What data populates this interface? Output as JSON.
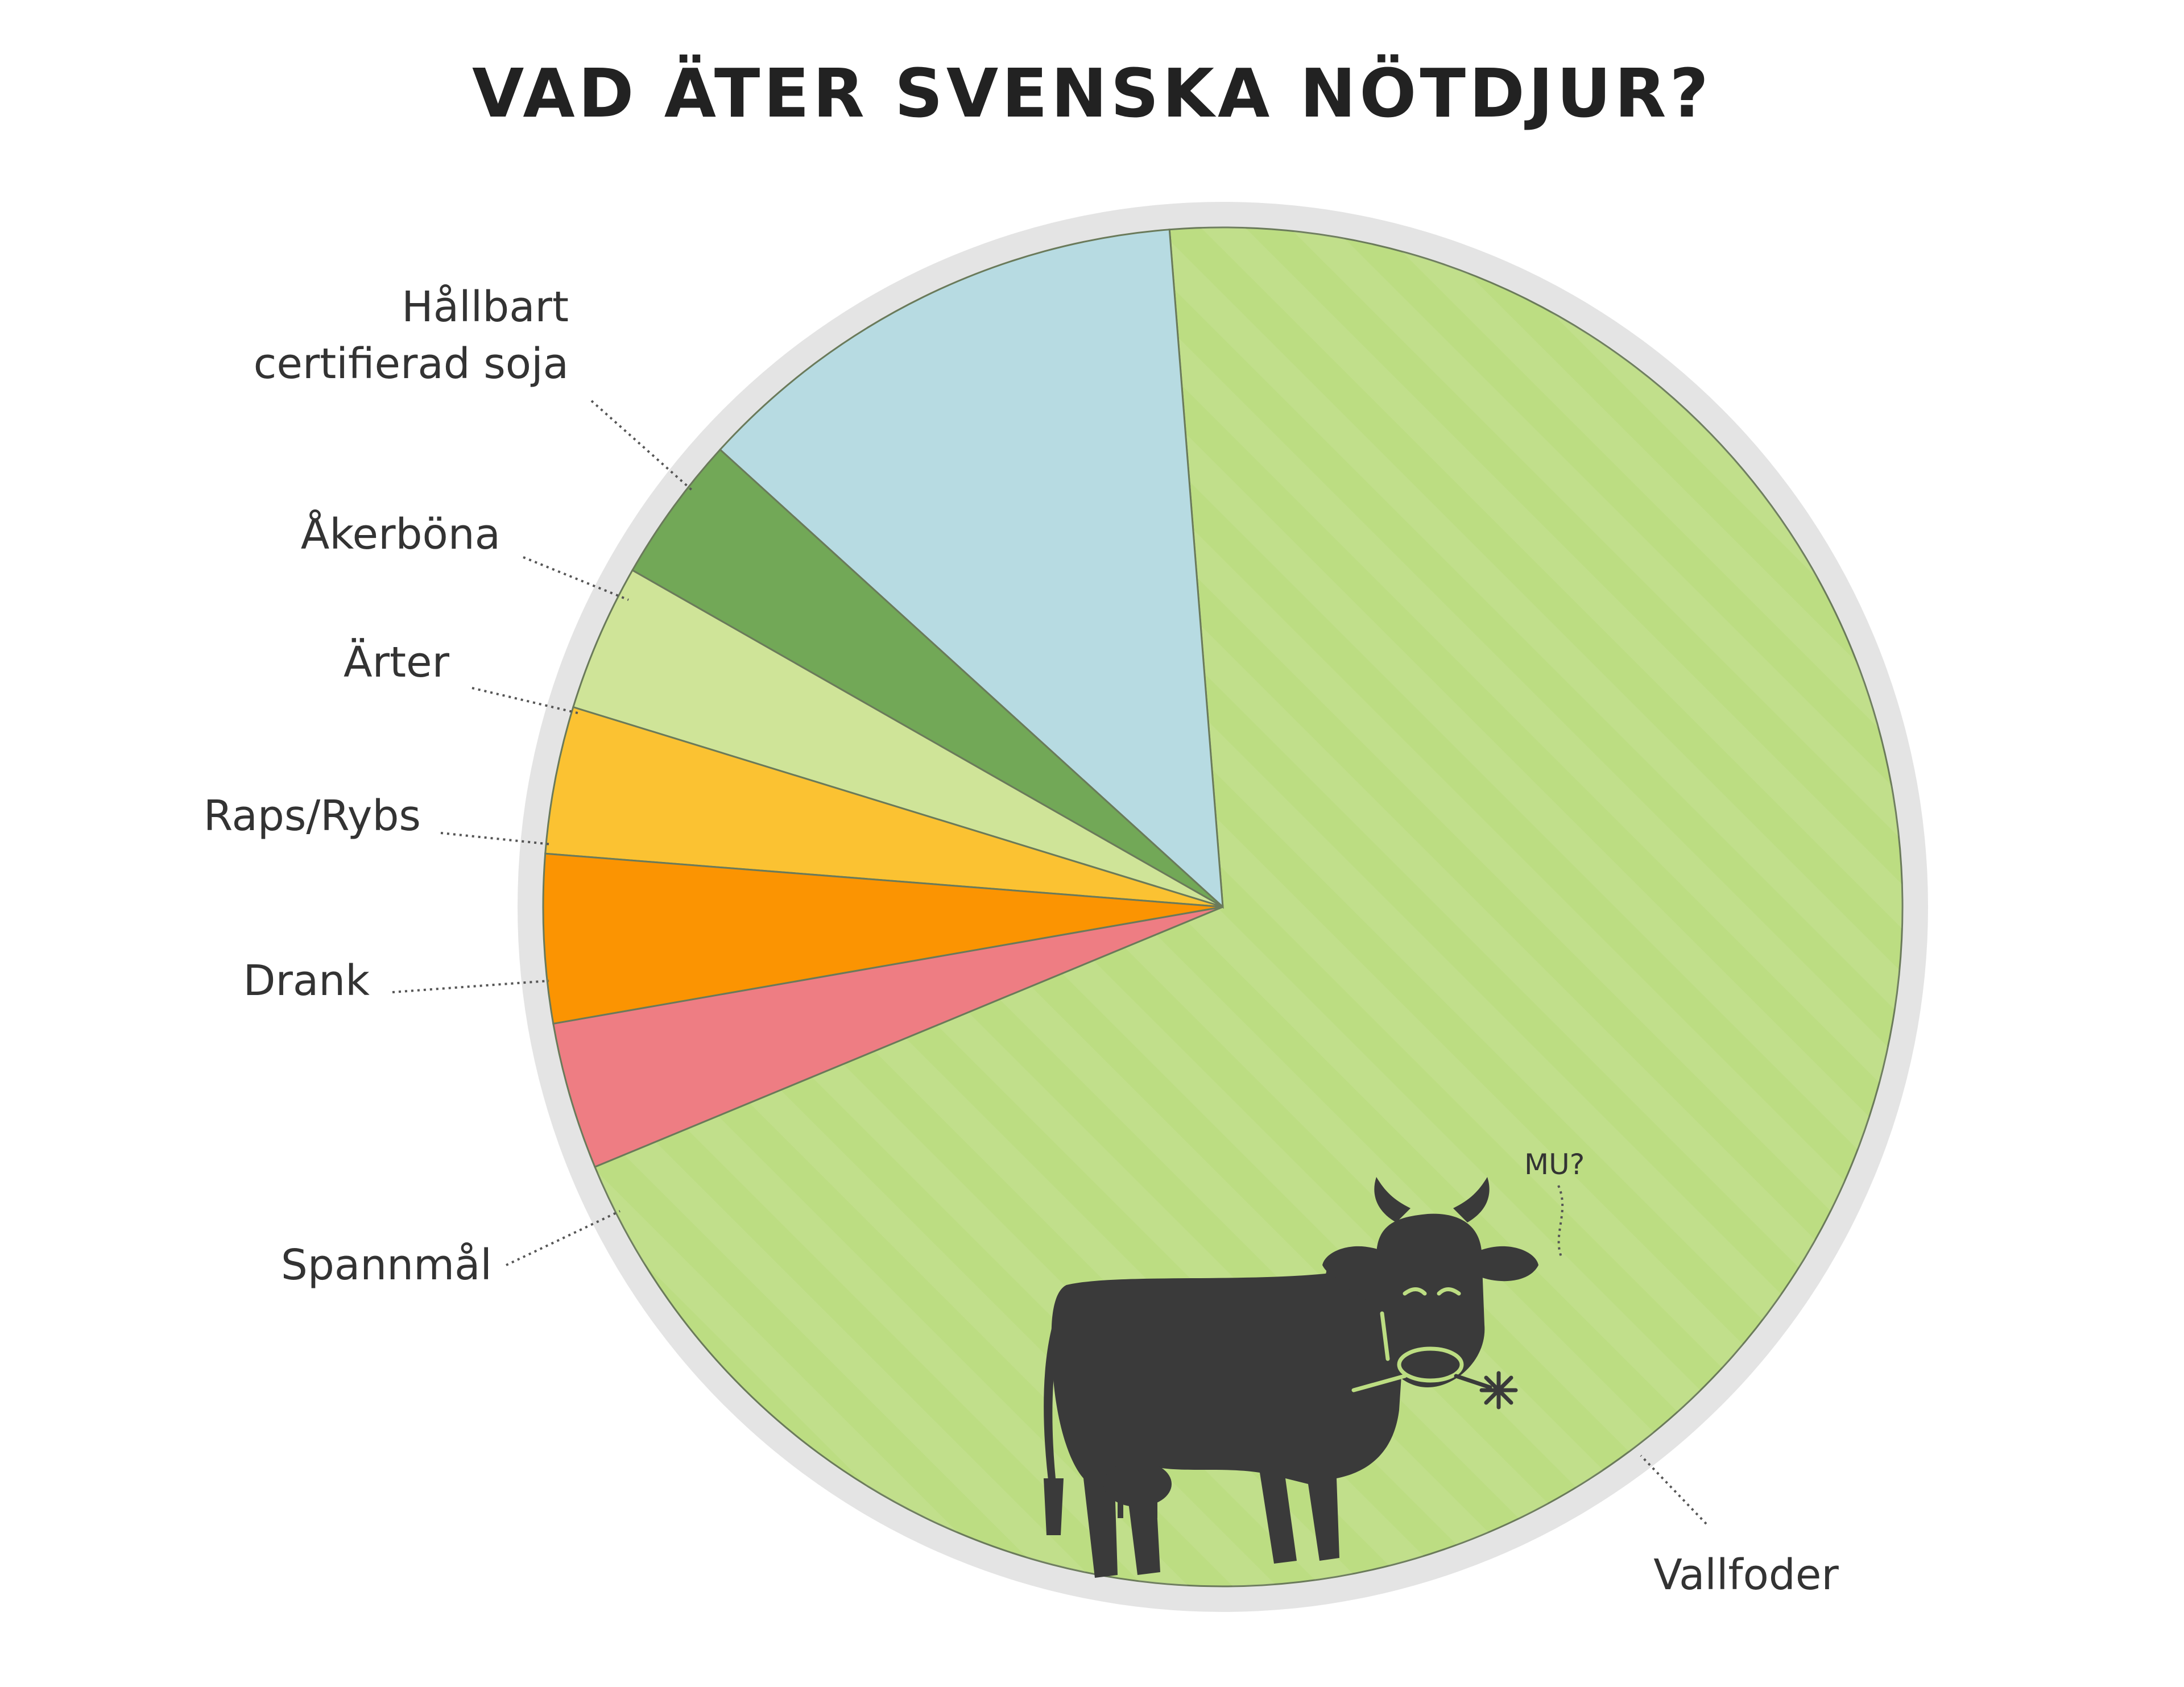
{
  "title": "VAD ÄTER SVENSKA NÖTDJUR?",
  "chart_data": {
    "type": "pie",
    "title": "VAD ÄTER SVENSKA NÖTDJUR?",
    "unit": "%",
    "slices": [
      {
        "label": "Vallfoder",
        "value": 70,
        "color": "#bcdd82"
      },
      {
        "label": "Spannmål",
        "value": 12,
        "color": "#b7dbe2"
      },
      {
        "label": "Drank",
        "value": 3.5,
        "color": "#72a857"
      },
      {
        "label": "Raps/Rybs",
        "value": 3.5,
        "color": "#cfe498"
      },
      {
        "label": "Ärter",
        "value": 3.5,
        "color": "#fbc232"
      },
      {
        "label": "Åkerböna",
        "value": 4,
        "color": "#fb9402"
      },
      {
        "label": "Hållbart certifierad soja",
        "value": 3.5,
        "color": "#ee7d83"
      }
    ],
    "label_lines": {
      "Hållbart certifierad soja": [
        "Hållbart",
        "certifierad soja"
      ]
    },
    "annotation": "MU?",
    "icon": "cow-icon"
  }
}
